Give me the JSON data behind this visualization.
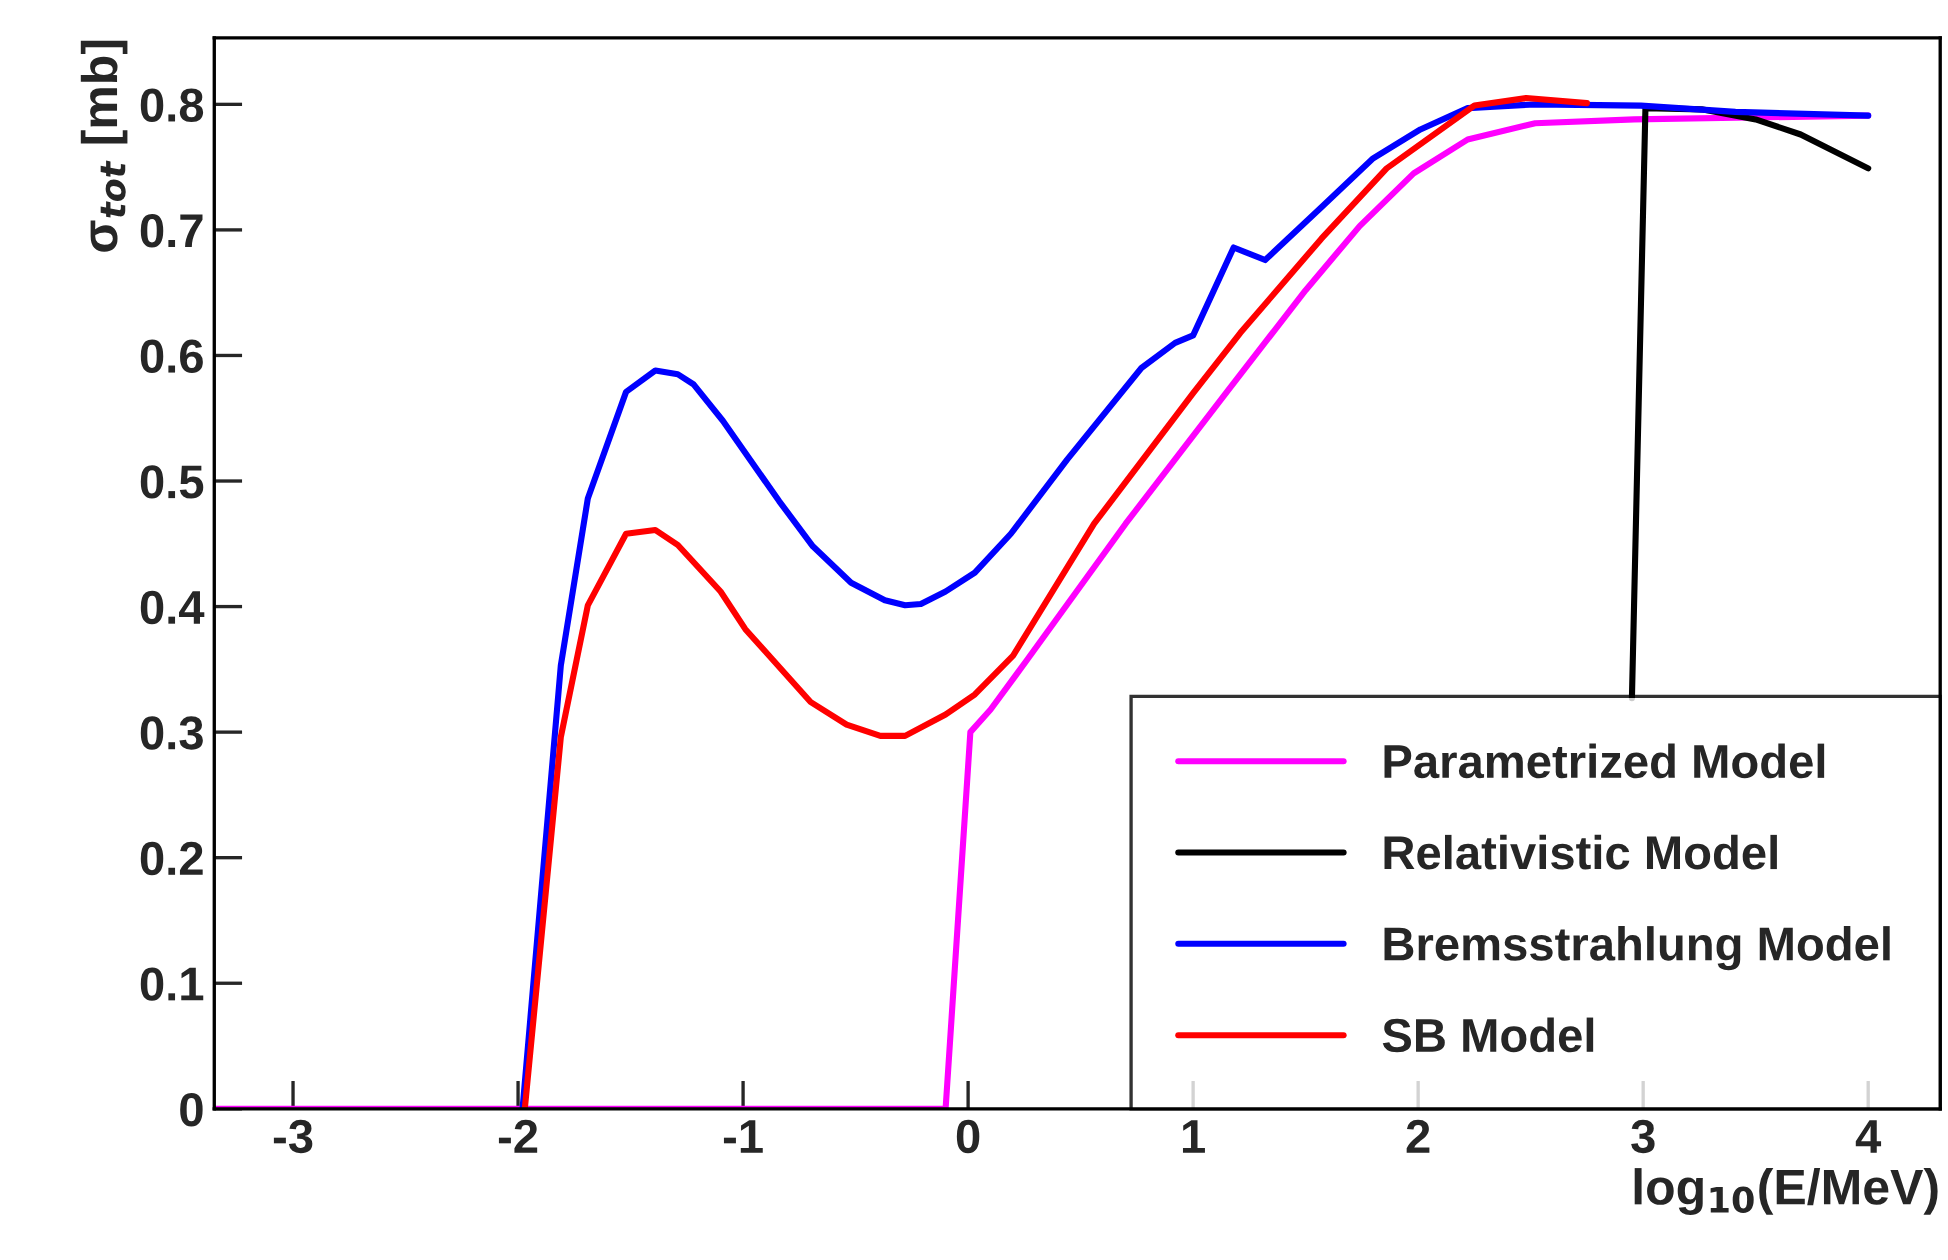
{
  "chart_data": {
    "type": "line",
    "xlabel": "log$_{10}$(E/MeV)",
    "ylabel": "σ$_{tot}$ [mb]",
    "xlim": [
      -3.35,
      4.32
    ],
    "ylim": [
      0,
      0.853
    ],
    "xticks": [
      -3,
      -2,
      -1,
      0,
      1,
      2,
      3,
      4
    ],
    "yticks": [
      0,
      0.1,
      0.2,
      0.3,
      0.4,
      0.5,
      0.6,
      0.7,
      0.8
    ],
    "grid": false,
    "legend": "bottom right",
    "marker": "none",
    "line_style": "solid",
    "series": [
      {
        "name": "Parametrized Model",
        "color": "#ff00ff",
        "x": [
          -3.35,
          -0.1,
          0.01,
          0.1,
          0.26,
          0.7,
          1.15,
          1.5,
          1.74,
          1.98,
          2.22,
          2.52,
          2.96,
          4.0
        ],
        "values": [
          0,
          0,
          0.3,
          0.318,
          0.357,
          0.466,
          0.571,
          0.652,
          0.703,
          0.745,
          0.772,
          0.785,
          0.788,
          0.791
        ]
      },
      {
        "name": "Relativistic Model",
        "color": "#000000",
        "x": [
          2.95,
          3.01,
          3.26,
          3.5,
          3.7,
          4.0
        ],
        "values": [
          0.327,
          0.797,
          0.796,
          0.788,
          0.776,
          0.749
        ]
      },
      {
        "name": "Bremsstrahlung Model",
        "color": "#0000ff",
        "x": [
          -1.98,
          -1.81,
          -1.69,
          -1.52,
          -1.39,
          -1.29,
          -1.22,
          -1.09,
          -0.84,
          -0.69,
          -0.52,
          -0.37,
          -0.28,
          -0.21,
          -0.1,
          0.03,
          0.19,
          0.44,
          0.77,
          0.92,
          1.0,
          1.18,
          1.32,
          1.57,
          1.8,
          2.01,
          2.22,
          2.52,
          2.99,
          3.41,
          4.0
        ],
        "values": [
          0,
          0.353,
          0.486,
          0.571,
          0.588,
          0.585,
          0.577,
          0.548,
          0.484,
          0.448,
          0.419,
          0.405,
          0.401,
          0.402,
          0.412,
          0.427,
          0.458,
          0.517,
          0.59,
          0.61,
          0.616,
          0.686,
          0.676,
          0.718,
          0.757,
          0.78,
          0.797,
          0.8,
          0.799,
          0.794,
          0.791
        ]
      },
      {
        "name": "SB Model",
        "color": "#ff0000",
        "x": [
          -1.97,
          -1.81,
          -1.69,
          -1.52,
          -1.39,
          -1.29,
          -1.1,
          -0.99,
          -0.7,
          -0.54,
          -0.39,
          -0.28,
          -0.1,
          0.03,
          0.2,
          0.56,
          1.0,
          1.21,
          1.57,
          1.86,
          2.25,
          2.48,
          2.75
        ],
        "values": [
          0,
          0.296,
          0.401,
          0.458,
          0.461,
          0.449,
          0.412,
          0.382,
          0.324,
          0.306,
          0.297,
          0.297,
          0.314,
          0.33,
          0.361,
          0.466,
          0.57,
          0.618,
          0.693,
          0.749,
          0.799,
          0.805,
          0.801
        ]
      }
    ]
  }
}
